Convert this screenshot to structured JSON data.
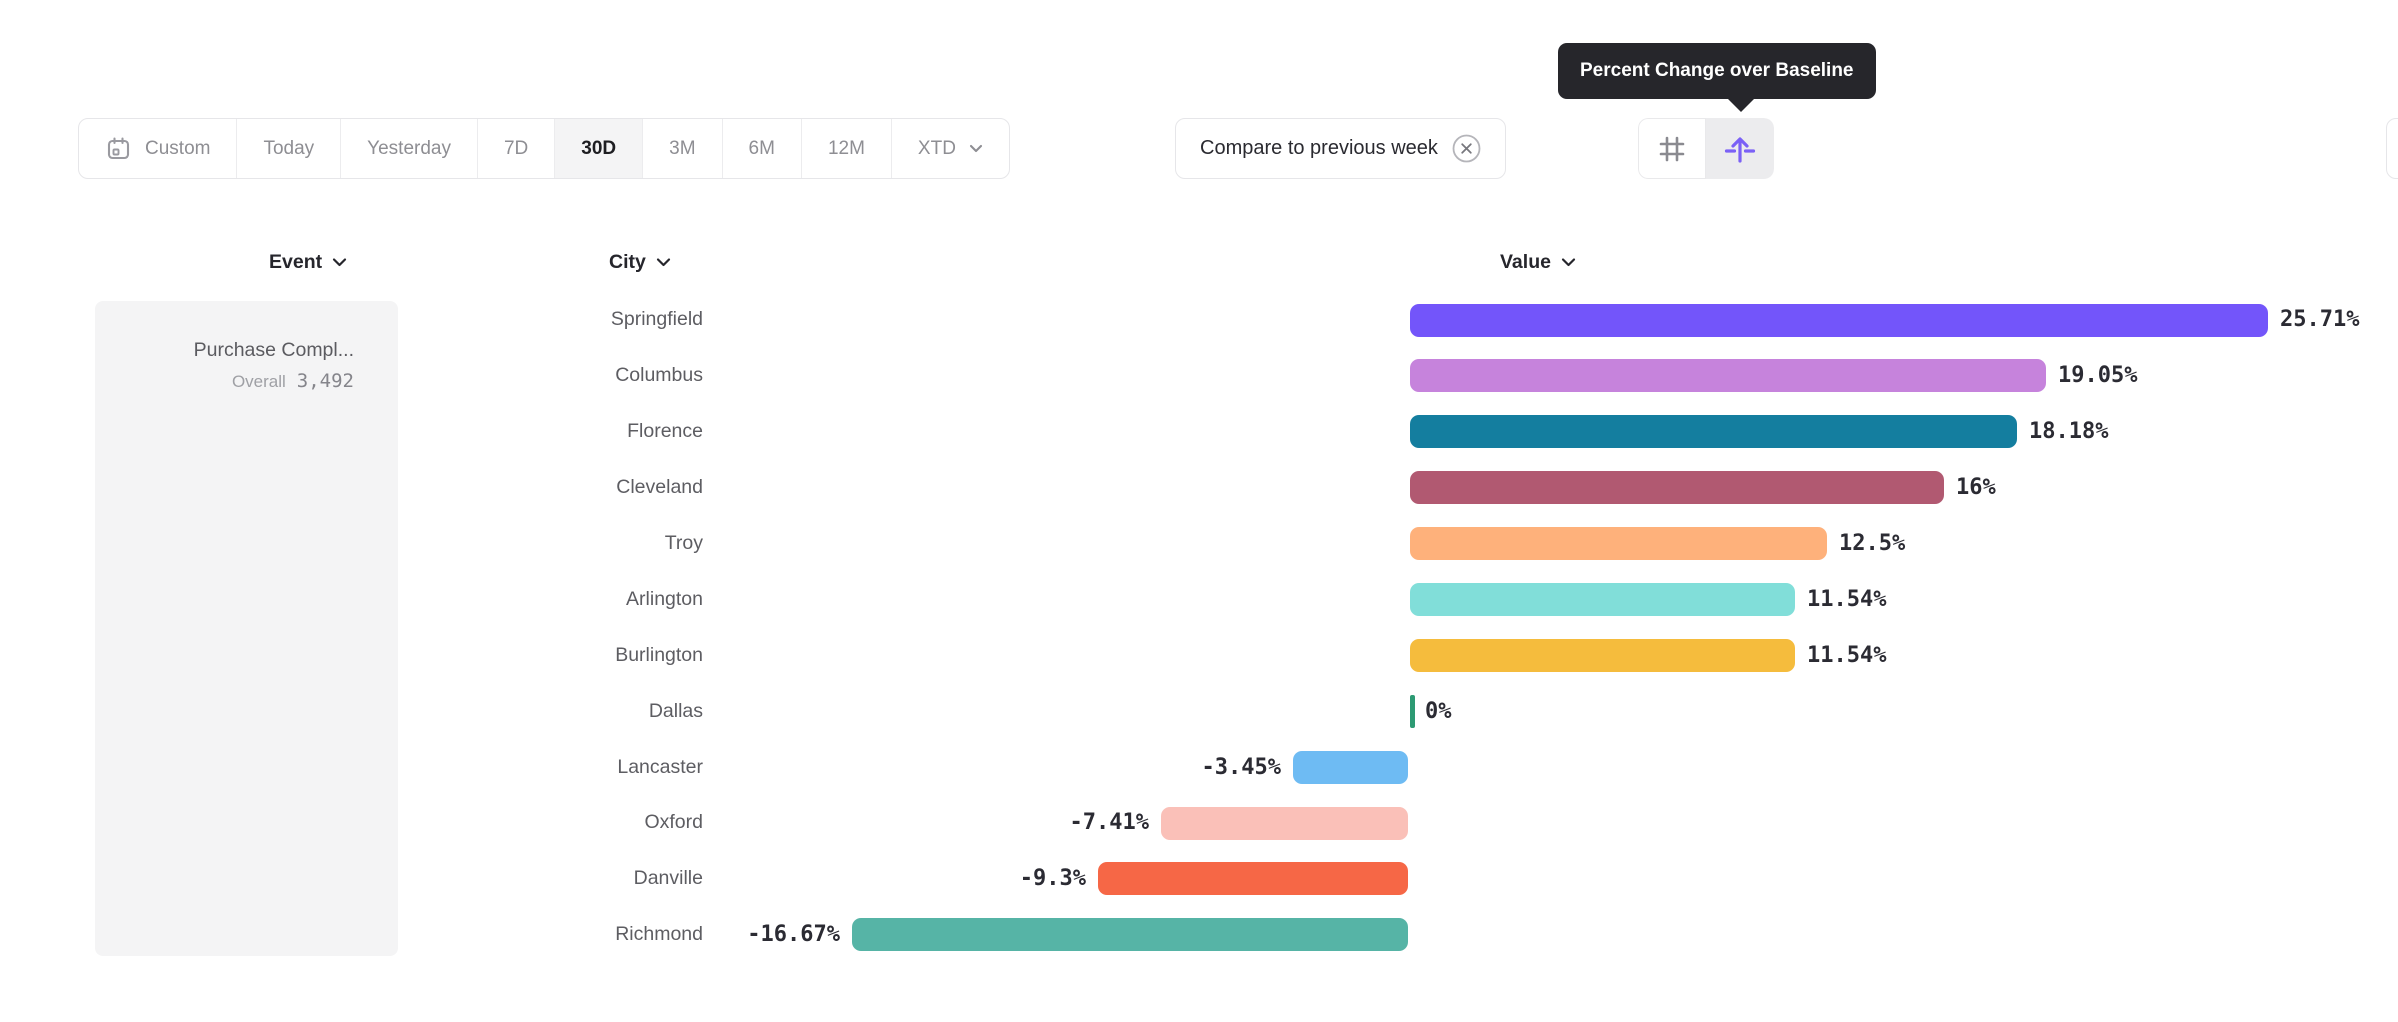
{
  "toolbar": {
    "date_ranges": [
      {
        "label": "Custom",
        "has_icon": true,
        "selected": false
      },
      {
        "label": "Today",
        "selected": false
      },
      {
        "label": "Yesterday",
        "selected": false
      },
      {
        "label": "7D",
        "selected": false
      },
      {
        "label": "30D",
        "selected": true
      },
      {
        "label": "3M",
        "selected": false
      },
      {
        "label": "6M",
        "selected": false
      },
      {
        "label": "12M",
        "selected": false
      },
      {
        "label": "XTD",
        "has_chevron": true,
        "selected": false
      }
    ],
    "compare_chip": {
      "label": "Compare to previous week"
    },
    "view_toggle": {
      "grid_icon": "number-grid-icon",
      "baseline_icon": "percent-change-baseline-icon",
      "active_icon_color": "#7B61F6",
      "active_bg": "#ECECEE"
    }
  },
  "tooltip": {
    "text": "Percent Change over Baseline",
    "bg": "#26262B"
  },
  "columns": {
    "event": "Event",
    "city": "City",
    "value": "Value"
  },
  "event_panel": {
    "event_name": "Purchase Compl...",
    "metric_label": "Overall",
    "metric_value": "3,492"
  },
  "chart_data": {
    "type": "bar",
    "orientation": "horizontal",
    "unit": "%",
    "baseline": 0,
    "xlim": [
      -16.67,
      25.71
    ],
    "grid": false,
    "legend": false,
    "categories": [
      "Springfield",
      "Columbus",
      "Florence",
      "Cleveland",
      "Troy",
      "Arlington",
      "Burlington",
      "Dallas",
      "Lancaster",
      "Oxford",
      "Danville",
      "Richmond"
    ],
    "values": [
      25.71,
      19.05,
      18.18,
      16,
      12.5,
      11.54,
      11.54,
      0,
      -3.45,
      -7.41,
      -9.3,
      -16.67
    ],
    "value_labels": [
      "25.71%",
      "19.05%",
      "18.18%",
      "16%",
      "12.5%",
      "11.54%",
      "11.54%",
      "0%",
      "-3.45%",
      "-7.41%",
      "-9.3%",
      "-16.67%"
    ],
    "colors": [
      "#7355FA",
      "#C683DC",
      "#147E9F",
      "#B15971",
      "#FEB17B",
      "#81DED9",
      "#F5BC3D",
      "#2D9A73",
      "#6EBBF3",
      "#FAC0B8",
      "#F66746",
      "#56B4A6"
    ]
  }
}
